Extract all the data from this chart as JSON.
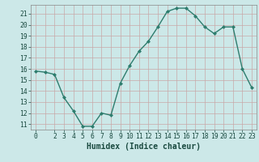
{
  "x": [
    0,
    1,
    2,
    3,
    4,
    5,
    6,
    7,
    8,
    9,
    10,
    11,
    12,
    13,
    14,
    15,
    16,
    17,
    18,
    19,
    20,
    21,
    22,
    23
  ],
  "y": [
    15.8,
    15.7,
    15.5,
    13.4,
    12.2,
    10.8,
    10.8,
    12.0,
    11.8,
    14.7,
    16.3,
    17.6,
    18.5,
    19.8,
    21.2,
    21.5,
    21.5,
    20.8,
    19.8,
    19.2,
    19.8,
    19.8,
    16.0,
    14.3
  ],
  "line_color": "#2e7d6e",
  "marker": "D",
  "markersize": 2.0,
  "linewidth": 1.0,
  "xlabel": "Humidex (Indice chaleur)",
  "ylim": [
    10.5,
    21.8
  ],
  "xlim": [
    -0.5,
    23.5
  ],
  "yticks": [
    11,
    12,
    13,
    14,
    15,
    16,
    17,
    18,
    19,
    20,
    21
  ],
  "xticks": [
    0,
    2,
    3,
    4,
    5,
    6,
    7,
    8,
    9,
    10,
    11,
    12,
    13,
    14,
    15,
    16,
    17,
    18,
    19,
    20,
    21,
    22,
    23
  ],
  "bg_color": "#cce8e8",
  "grid_color_h": "#c8a8a8",
  "grid_color_v": "#c8a8a8",
  "tick_color": "#1a4a40",
  "xlabel_fontsize": 7.0,
  "tick_fontsize": 5.8
}
